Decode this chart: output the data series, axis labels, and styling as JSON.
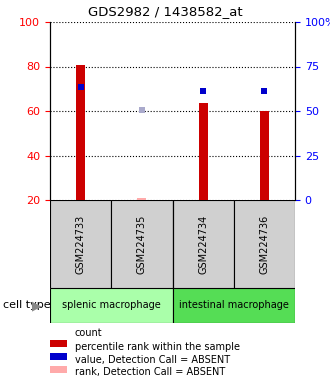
{
  "title": "GDS2982 / 1438582_at",
  "samples": [
    "GSM224733",
    "GSM224735",
    "GSM224734",
    "GSM224736"
  ],
  "groups": [
    {
      "name": "splenic macrophage",
      "color": "#aaffaa",
      "samples": [
        0,
        1
      ]
    },
    {
      "name": "intestinal macrophage",
      "color": "#55dd55",
      "samples": [
        2,
        3
      ]
    }
  ],
  "bar_bottoms": [
    20,
    20,
    20,
    20
  ],
  "count_values": [
    80.5,
    20.8,
    63.5,
    60.2
  ],
  "count_absent_flags": [
    false,
    true,
    false,
    false
  ],
  "count_color": "#cc0000",
  "count_absent_color": "#ffaaaa",
  "rank_values": [
    63.5,
    null,
    61.5,
    61.0
  ],
  "rank_absent_values": [
    null,
    50.5,
    null,
    null
  ],
  "rank_color": "#0000cc",
  "rank_absent_color": "#aaaacc",
  "rank_marker_size": 5,
  "ylim_left": [
    20,
    100
  ],
  "ylim_right": [
    0,
    100
  ],
  "yticks_left": [
    20,
    40,
    60,
    80,
    100
  ],
  "yticks_right": [
    0,
    25,
    50,
    75,
    100
  ],
  "ytick_labels_right": [
    "0",
    "25",
    "50",
    "75",
    "100%"
  ],
  "bar_width": 0.15,
  "grid_color": "#000000",
  "plot_bg_color": "#ffffff",
  "sample_box_color": "#d0d0d0",
  "legend_items": [
    {
      "color": "#cc0000",
      "label": "count"
    },
    {
      "color": "#0000cc",
      "label": "percentile rank within the sample"
    },
    {
      "color": "#ffaaaa",
      "label": "value, Detection Call = ABSENT"
    },
    {
      "color": "#aaaacc",
      "label": "rank, Detection Call = ABSENT"
    }
  ],
  "cell_type_label": "cell type",
  "arrow_color": "#888888"
}
